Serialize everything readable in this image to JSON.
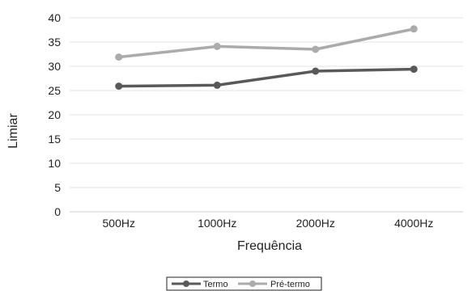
{
  "chart_data": {
    "type": "line",
    "categories": [
      "500Hz",
      "1000Hz",
      "2000Hz",
      "4000Hz"
    ],
    "series": [
      {
        "name": "Termo",
        "values": [
          25.9,
          26.1,
          29.0,
          29.4
        ],
        "color": "#595959"
      },
      {
        "name": "Pré-termo",
        "values": [
          31.9,
          34.1,
          33.5,
          37.7
        ],
        "color": "#ababab"
      }
    ],
    "xlabel": "Frequência",
    "ylabel": "Limiar",
    "ylim": [
      0,
      40
    ],
    "yticks": [
      0,
      5,
      10,
      15,
      20,
      25,
      30,
      35,
      40
    ],
    "grid": "horizontal",
    "legend_position": "bottom"
  }
}
